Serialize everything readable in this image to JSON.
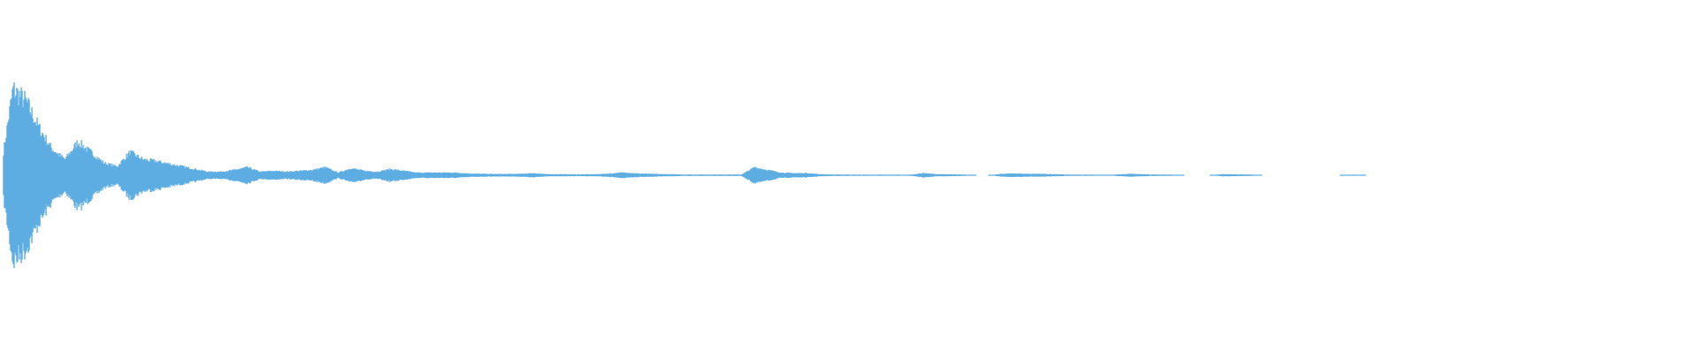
{
  "chart_data": {
    "type": "area",
    "style": "audio-waveform-mirrored",
    "title": "",
    "xlabel": "",
    "ylabel": "",
    "ylim": [
      -1,
      1
    ],
    "grid": false,
    "axes_visible": false,
    "color": "#5dade2",
    "background": "#ffffff",
    "amplitude_envelope": [
      0,
      0.49,
      0.42,
      0.27,
      0.15,
      0.09,
      0.19,
      0.13,
      0.07,
      0.05,
      0.13,
      0.09,
      0.08,
      0.065,
      0.05,
      0.035,
      0.02,
      0.02,
      0.03,
      0.045,
      0.02,
      0.025,
      0.02,
      0.025,
      0.03,
      0.045,
      0.015,
      0.04,
      0.025,
      0.02,
      0.035,
      0.025,
      0.015,
      0.015,
      0.015,
      0.015,
      0.01,
      0.008,
      0.007,
      0.007,
      0.008,
      0.012,
      0.006,
      0.006,
      0.005,
      0.005,
      0.006,
      0.01,
      0.016,
      0.01,
      0.008,
      0.006,
      0.005,
      0.004,
      0.004,
      0.004,
      0.004,
      0.004,
      0.045,
      0.03,
      0.015,
      0.012,
      0.012,
      0.006,
      0.004,
      0.004,
      0.003,
      0.003,
      0.003,
      0.003,
      0.003,
      0.012,
      0.006,
      0.005,
      0.004,
      0,
      0,
      0.008,
      0.01,
      0.008,
      0.008,
      0.006,
      0.004,
      0.003,
      0.003,
      0,
      0.005,
      0.008,
      0.005,
      0.004,
      0.003,
      0,
      0,
      0,
      0.006,
      0.005,
      0.004,
      0,
      0,
      0,
      0,
      0,
      0,
      0,
      0.003,
      0,
      0,
      0,
      0,
      0,
      0,
      0,
      0,
      0,
      0,
      0,
      0,
      0,
      0,
      0,
      0,
      0,
      0,
      0,
      0,
      0,
      0,
      0,
      0,
      0,
      0
    ]
  }
}
